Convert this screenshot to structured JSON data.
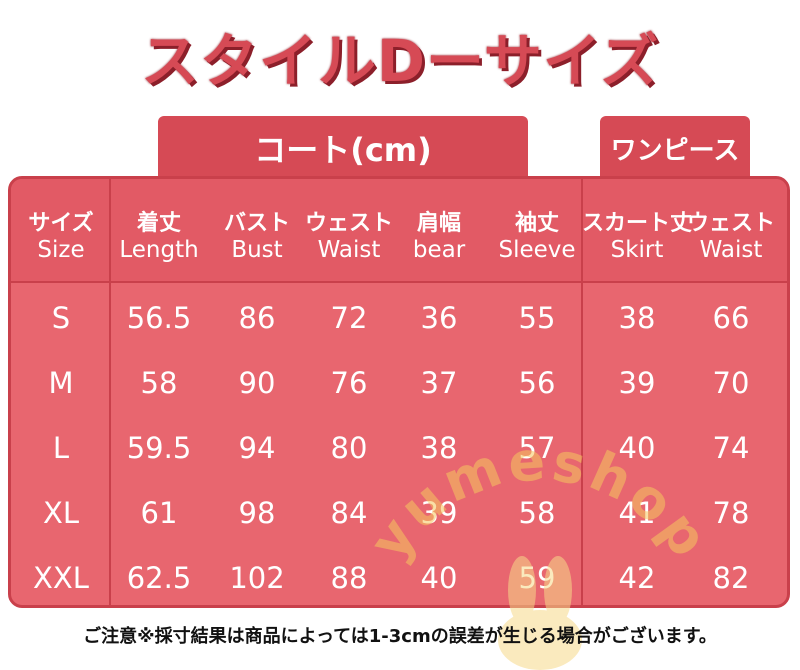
{
  "title": "スタイルDーサイズ",
  "tabs": {
    "coat": "コート(cm)",
    "dress": "ワンピース"
  },
  "headers": [
    {
      "jp": "サイズ",
      "en": "Size"
    },
    {
      "jp": "着丈",
      "en": "Length"
    },
    {
      "jp": "バスト",
      "en": "Bust"
    },
    {
      "jp": "ウェスト",
      "en": "Waist"
    },
    {
      "jp": "肩幅",
      "en": "bear"
    },
    {
      "jp": "袖丈",
      "en": "Sleeve"
    },
    {
      "jp": "スカート丈",
      "en": "Skirt"
    },
    {
      "jp": "ウェスト",
      "en": "Waist"
    }
  ],
  "rows": [
    [
      "S",
      "56.5",
      "86",
      "72",
      "36",
      "55",
      "38",
      "66"
    ],
    [
      "M",
      "58",
      "90",
      "76",
      "37",
      "56",
      "39",
      "70"
    ],
    [
      "L",
      "59.5",
      "94",
      "80",
      "38",
      "57",
      "40",
      "74"
    ],
    [
      "XL",
      "61",
      "98",
      "84",
      "39",
      "58",
      "41",
      "78"
    ],
    [
      "XXL",
      "62.5",
      "102",
      "88",
      "40",
      "59",
      "42",
      "82"
    ]
  ],
  "watermark": "yumeshop",
  "note": "ご注意※採寸結果は商品によっては1-3cmの誤差が生じる場合がございます。",
  "colors": {
    "accent": "#d64a55",
    "table": "#e8666f",
    "border": "#c9404b"
  }
}
